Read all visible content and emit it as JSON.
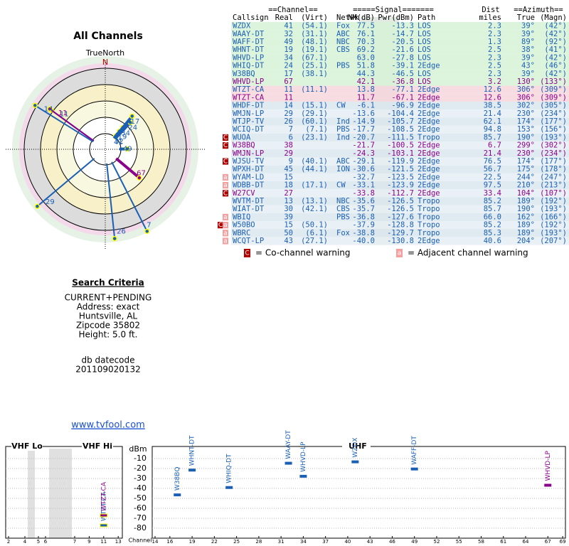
{
  "left": {
    "title": "All Channels",
    "north_label": "TrueNorth",
    "north_mark": "N",
    "criteria_title": "Search Criteria",
    "criteria": [
      "CURRENT+PENDING",
      "Address: exact",
      "Huntsville, AL",
      "Zipcode 35802",
      "Height: 5.0 ft."
    ],
    "datecode_label": "db datecode",
    "datecode": "201109020132",
    "link": "www.tvfool.com"
  },
  "table": {
    "header_top": [
      "==Channel==",
      "=====Signal=======",
      "Dist",
      "==Azimuth=="
    ],
    "header": [
      "Callsign",
      "Real",
      "(Virt)",
      "Netwk",
      "NM(dB)",
      "Pwr(dBm)",
      "Path",
      "miles",
      "True",
      "(Magn)"
    ],
    "rows": [
      {
        "cells": [
          "WZDX",
          "41",
          "(54.1)",
          "Fox",
          "77.5",
          "-13.3",
          "LOS",
          "2.3",
          "39°",
          "(42°)"
        ],
        "color": "#1a5fb4"
      },
      {
        "cells": [
          "WAAY-DT",
          "32",
          "(31.1)",
          "ABC",
          "76.1",
          "-14.7",
          "LOS",
          "2.3",
          "39°",
          "(42°)"
        ],
        "color": "#1a5fb4"
      },
      {
        "cells": [
          "WAFF-DT",
          "49",
          "(48.1)",
          "NBC",
          "70.3",
          "-20.5",
          "LOS",
          "1.3",
          "89°",
          "(92°)"
        ],
        "color": "#1a5fb4"
      },
      {
        "cells": [
          "WHNT-DT",
          "19",
          "(19.1)",
          "CBS",
          "69.2",
          "-21.6",
          "LOS",
          "2.5",
          "38°",
          "(41°)"
        ],
        "color": "#1a5fb4"
      },
      {
        "cells": [
          "WHVD-LP",
          "34",
          "(67.1)",
          null,
          "63.0",
          "-27.8",
          "LOS",
          "2.3",
          "39°",
          "(42°)"
        ],
        "color": "#1a5fb4"
      },
      {
        "cells": [
          "WHIQ-DT",
          "24",
          "(25.1)",
          "PBS",
          "51.8",
          "-39.1",
          "2Edge",
          "2.5",
          "43°",
          "(46°)"
        ],
        "color": "#1a5fb4"
      },
      {
        "cells": [
          "W38BQ",
          "17",
          "(38.1)",
          null,
          "44.3",
          "-46.5",
          "LOS",
          "2.3",
          "39°",
          "(42°)"
        ],
        "color": "#1a5fb4"
      },
      {
        "cells": [
          "WHVD-LP",
          "67",
          null,
          null,
          "42.1",
          "-36.8",
          "LOS",
          "3.2",
          "130°",
          "(133°)"
        ],
        "color": "#8b008b"
      },
      {
        "cells": [
          "WTZT-CA",
          "11",
          "(11.1)",
          null,
          "13.8",
          "-77.1",
          "2Edge",
          "12.6",
          "306°",
          "(309°)"
        ],
        "color": "#1a5fb4"
      },
      {
        "cells": [
          "WTZT-CA",
          "11",
          null,
          null,
          "11.7",
          "-67.1",
          "2Edge",
          "12.6",
          "306°",
          "(309°)"
        ],
        "color": "#8b008b"
      },
      {
        "cells": [
          "WHDF-DT",
          "14",
          "(15.1)",
          "CW",
          "-6.1",
          "-96.9",
          "2Edge",
          "38.5",
          "302°",
          "(305°)"
        ],
        "color": "#1a5fb4"
      },
      {
        "cells": [
          "WMJN-LP",
          "29",
          "(29.1)",
          null,
          "-13.6",
          "-104.4",
          "2Edge",
          "21.4",
          "230°",
          "(234°)"
        ],
        "color": "#1a5fb4"
      },
      {
        "cells": [
          "WTJP-TV",
          "26",
          "(60.1)",
          "Ind",
          "-14.9",
          "-105.7",
          "2Edge",
          "62.1",
          "174°",
          "(177°)"
        ],
        "color": "#1a5fb4"
      },
      {
        "cells": [
          "WCIQ-DT",
          "7",
          "(7.1)",
          "PBS",
          "-17.7",
          "-108.5",
          "2Edge",
          "94.8",
          "153°",
          "(156°)"
        ],
        "color": "#1a5fb4"
      },
      {
        "cells": [
          "WUOA",
          "6",
          "(23.1)",
          "Ind",
          "-20.7",
          "-111.5",
          "Tropo",
          "85.7",
          "190°",
          "(193°)"
        ],
        "color": "#1a5fb4",
        "warnings": [
          "C"
        ]
      },
      {
        "cells": [
          "W38BQ",
          "38",
          null,
          null,
          "-21.7",
          "-100.5",
          "2Edge",
          "6.7",
          "299°",
          "(302°)"
        ],
        "color": "#8b008b",
        "warnings": [
          "C"
        ]
      },
      {
        "cells": [
          "WMJN-LP",
          "29",
          null,
          null,
          "-24.3",
          "-103.1",
          "2Edge",
          "21.4",
          "230°",
          "(234°)"
        ],
        "color": "#8b008b"
      },
      {
        "cells": [
          "WJSU-TV",
          "9",
          "(40.1)",
          "ABC",
          "-29.1",
          "-119.9",
          "2Edge",
          "76.5",
          "174°",
          "(177°)"
        ],
        "color": "#1a5fb4",
        "warnings": [
          "C"
        ]
      },
      {
        "cells": [
          "WPXH-DT",
          "45",
          "(44.1)",
          "ION",
          "-30.6",
          "-121.5",
          "2Edge",
          "56.7",
          "175°",
          "(178°)"
        ],
        "color": "#1a5fb4"
      },
      {
        "cells": [
          "WYAM-LD",
          "15",
          null,
          null,
          "-32.7",
          "-123.5",
          "2Edge",
          "22.5",
          "244°",
          "(247°)"
        ],
        "color": "#1a5fb4",
        "warnings": [
          "a"
        ]
      },
      {
        "cells": [
          "WDBB-DT",
          "18",
          "(17.1)",
          "CW",
          "-33.1",
          "-123.9",
          "2Edge",
          "97.5",
          "210°",
          "(213°)"
        ],
        "color": "#1a5fb4",
        "warnings": [
          "a"
        ]
      },
      {
        "cells": [
          "W27CV",
          "27",
          null,
          null,
          "-33.8",
          "-112.7",
          "2Edge",
          "33.4",
          "104°",
          "(107°)"
        ],
        "color": "#8b008b",
        "warnings": [
          "C"
        ]
      },
      {
        "cells": [
          "WVTM-DT",
          "13",
          "(13.1)",
          "NBC",
          "-35.6",
          "-126.5",
          "Tropo",
          "85.2",
          "189°",
          "(192°)"
        ],
        "color": "#1a5fb4"
      },
      {
        "cells": [
          "WIAT-DT",
          "30",
          "(42.1)",
          "CBS",
          "-35.7",
          "-126.5",
          "Tropo",
          "85.7",
          "190°",
          "(193°)"
        ],
        "color": "#1a5fb4"
      },
      {
        "cells": [
          "WBIQ",
          "39",
          null,
          "PBS",
          "-36.8",
          "-127.6",
          "Tropo",
          "66.0",
          "162°",
          "(166°)"
        ],
        "color": "#1a5fb4",
        "warnings": [
          "a"
        ]
      },
      {
        "cells": [
          "W50BO",
          "15",
          "(50.1)",
          null,
          "-37.9",
          "-128.8",
          "Tropo",
          "85.2",
          "189°",
          "(192°)"
        ],
        "color": "#1a5fb4",
        "warnings": [
          "C",
          "a"
        ]
      },
      {
        "cells": [
          "WBRC",
          "50",
          "(6.1)",
          "Fox",
          "-38.8",
          "-129.7",
          "Tropo",
          "85.3",
          "189°",
          "(193°)"
        ],
        "color": "#1a5fb4",
        "warnings": [
          "a"
        ]
      },
      {
        "cells": [
          "WCQT-LP",
          "43",
          "(27.1)",
          null,
          "-40.0",
          "-130.8",
          "2Edge",
          "40.6",
          "204°",
          "(207°)"
        ],
        "color": "#1a5fb4",
        "warnings": [
          "a"
        ]
      }
    ],
    "warning_legend": [
      {
        "mark": "C",
        "text": "= Co-channel warning"
      },
      {
        "mark": "a",
        "text": "= Adjacent channel warning"
      }
    ]
  },
  "spectrum": {
    "sections": [
      "VHF Lo",
      "VHF Hi",
      "UHF"
    ],
    "y_label": "dBm",
    "x_label": "Channel",
    "ylim": [
      0,
      -90
    ],
    "yticks": [
      -10,
      -20,
      -30,
      -40,
      -50,
      -60,
      -70,
      -80
    ],
    "vhf_ticks": [
      2,
      4,
      5,
      6,
      7,
      9,
      11,
      13
    ],
    "uhf_ticks": [
      14,
      16,
      19,
      22,
      25,
      28,
      31,
      34,
      37,
      40,
      43,
      46,
      49,
      52,
      55,
      58,
      61,
      64,
      67,
      69
    ]
  }
}
